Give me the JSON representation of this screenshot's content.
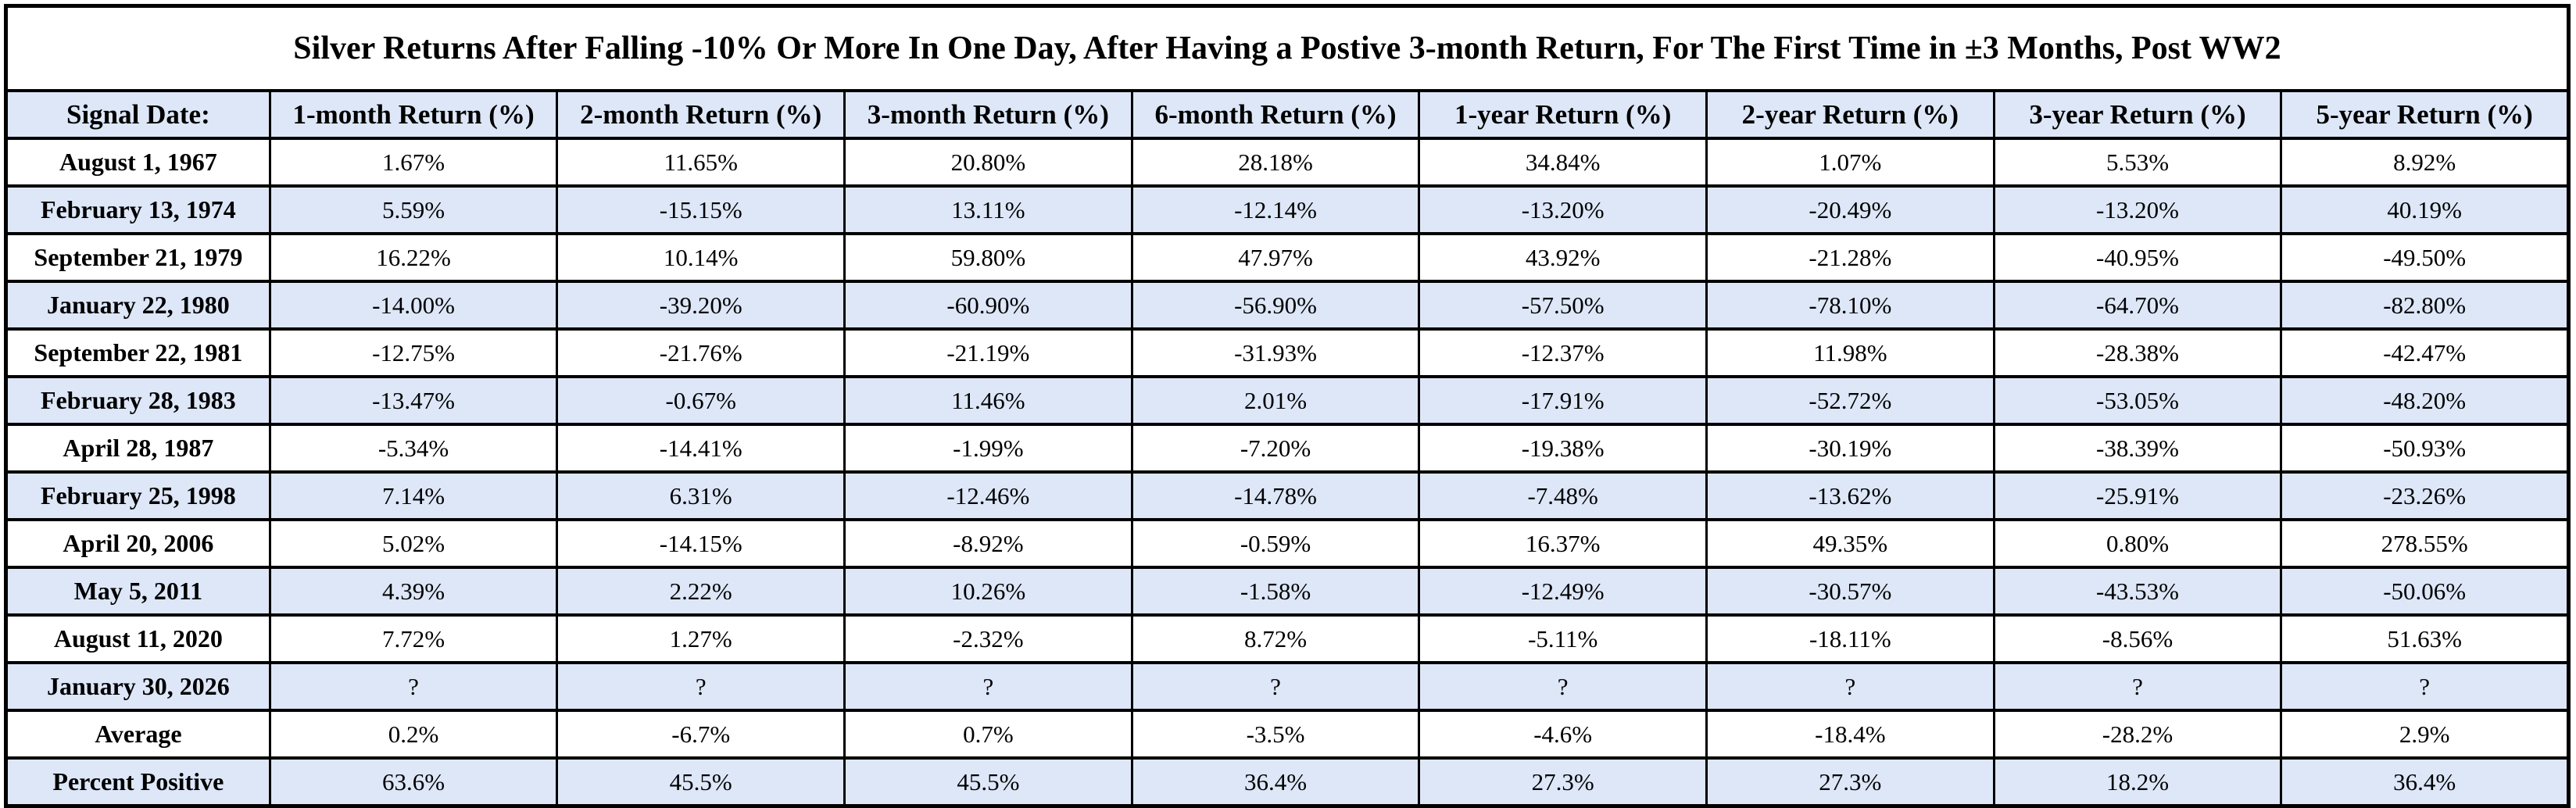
{
  "colors": {
    "band_blue": "#dde7f8",
    "row_white": "#ffffff",
    "border": "#000000",
    "text": "#000000"
  },
  "chart_data": {
    "type": "table",
    "title": "Silver Returns After Falling -10% Or More In One Day, After Having a Postive 3-month Return, For The First Time in ±3 Months, Post WW2",
    "columns": [
      "Signal Date:",
      "1-month Return (%)",
      "2-month Return (%)",
      "3-month Return (%)",
      "6-month Return (%)",
      "1-year Return (%)",
      "2-year Return (%)",
      "3-year Return (%)",
      "5-year Return (%)"
    ],
    "rows": [
      [
        "August 1, 1967",
        "1.67%",
        "11.65%",
        "20.80%",
        "28.18%",
        "34.84%",
        "1.07%",
        "5.53%",
        "8.92%"
      ],
      [
        "February 13, 1974",
        "5.59%",
        "-15.15%",
        "13.11%",
        "-12.14%",
        "-13.20%",
        "-20.49%",
        "-13.20%",
        "40.19%"
      ],
      [
        "September 21, 1979",
        "16.22%",
        "10.14%",
        "59.80%",
        "47.97%",
        "43.92%",
        "-21.28%",
        "-40.95%",
        "-49.50%"
      ],
      [
        "January 22, 1980",
        "-14.00%",
        "-39.20%",
        "-60.90%",
        "-56.90%",
        "-57.50%",
        "-78.10%",
        "-64.70%",
        "-82.80%"
      ],
      [
        "September 22, 1981",
        "-12.75%",
        "-21.76%",
        "-21.19%",
        "-31.93%",
        "-12.37%",
        "11.98%",
        "-28.38%",
        "-42.47%"
      ],
      [
        "February 28, 1983",
        "-13.47%",
        "-0.67%",
        "11.46%",
        "2.01%",
        "-17.91%",
        "-52.72%",
        "-53.05%",
        "-48.20%"
      ],
      [
        "April 28, 1987",
        "-5.34%",
        "-14.41%",
        "-1.99%",
        "-7.20%",
        "-19.38%",
        "-30.19%",
        "-38.39%",
        "-50.93%"
      ],
      [
        "February 25, 1998",
        "7.14%",
        "6.31%",
        "-12.46%",
        "-14.78%",
        "-7.48%",
        "-13.62%",
        "-25.91%",
        "-23.26%"
      ],
      [
        "April 20, 2006",
        "5.02%",
        "-14.15%",
        "-8.92%",
        "-0.59%",
        "16.37%",
        "49.35%",
        "0.80%",
        "278.55%"
      ],
      [
        "May 5, 2011",
        "4.39%",
        "2.22%",
        "10.26%",
        "-1.58%",
        "-12.49%",
        "-30.57%",
        "-43.53%",
        "-50.06%"
      ],
      [
        "August 11, 2020",
        "7.72%",
        "1.27%",
        "-2.32%",
        "8.72%",
        "-5.11%",
        "-18.11%",
        "-8.56%",
        "51.63%"
      ],
      [
        "January 30, 2026",
        "?",
        "?",
        "?",
        "?",
        "?",
        "?",
        "?",
        "?"
      ]
    ],
    "summary_rows": [
      [
        "Average",
        "0.2%",
        "-6.7%",
        "0.7%",
        "-3.5%",
        "-4.6%",
        "-18.4%",
        "-28.2%",
        "2.9%"
      ],
      [
        "Percent Positive",
        "63.6%",
        "45.5%",
        "45.5%",
        "36.4%",
        "27.3%",
        "27.3%",
        "18.2%",
        "36.4%"
      ]
    ],
    "layout": {
      "banding": "alternating white and light blue rows",
      "header_background": "light blue",
      "grid": true
    }
  }
}
